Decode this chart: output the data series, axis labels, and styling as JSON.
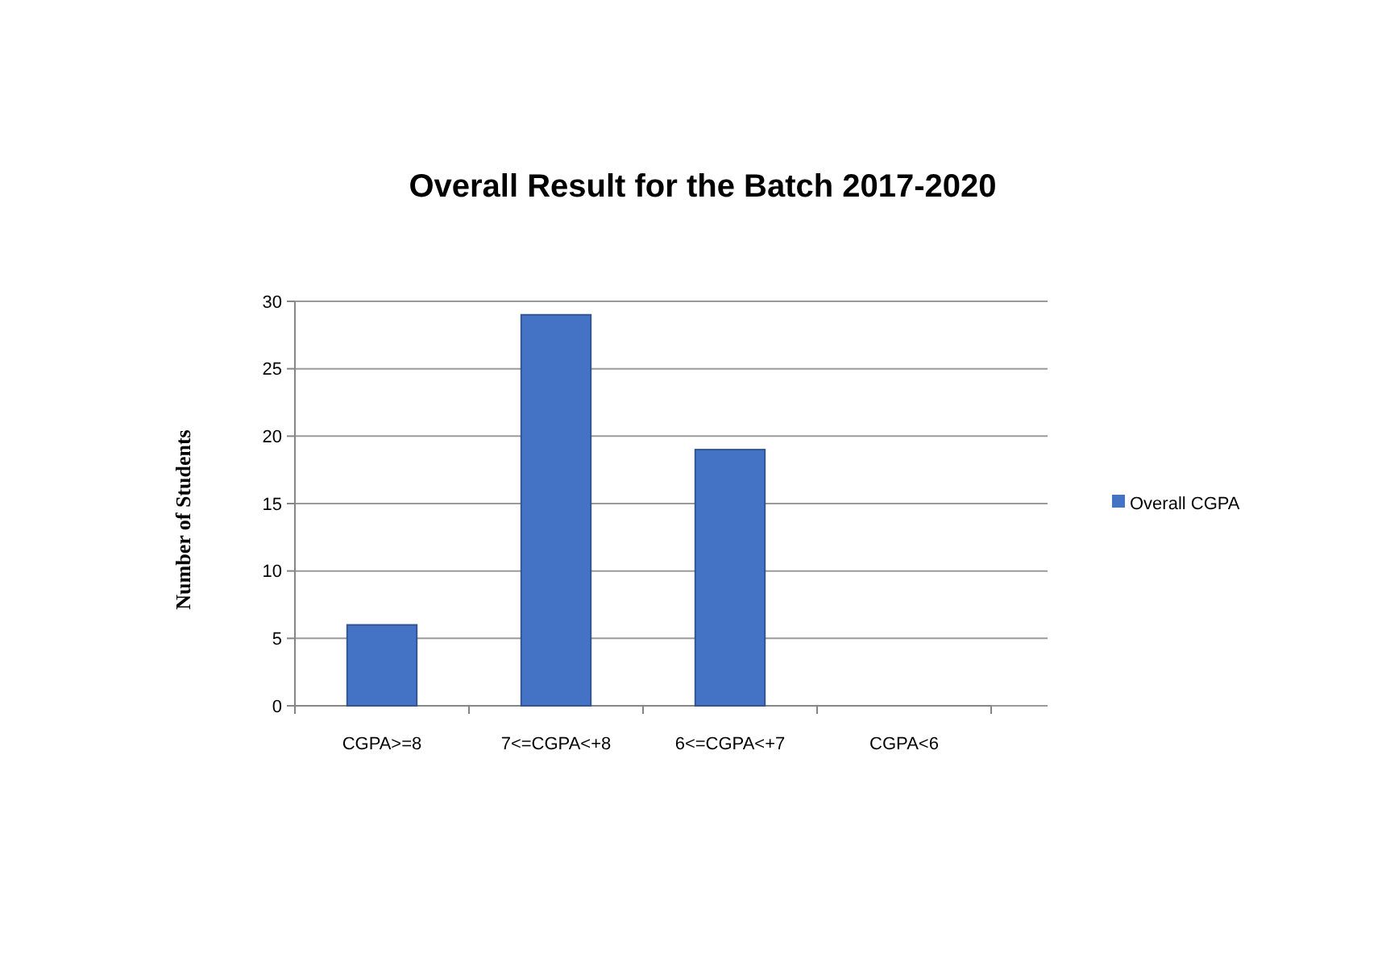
{
  "chart_data": {
    "type": "bar",
    "title": "Overall Result for the Batch 2017-2020",
    "ylabel": "Number of Students",
    "categories": [
      "CGPA>=8",
      "7<=CGPA<+8",
      "6<=CGPA<+7",
      "CGPA<6"
    ],
    "series": [
      {
        "name": "Overall CGPA",
        "color": "#4472c4",
        "values": [
          6,
          29,
          19,
          0
        ]
      }
    ],
    "ylim": [
      0,
      30
    ],
    "yticks": [
      0,
      5,
      10,
      15,
      20,
      25,
      30
    ],
    "grid": "y",
    "legend": "right"
  }
}
